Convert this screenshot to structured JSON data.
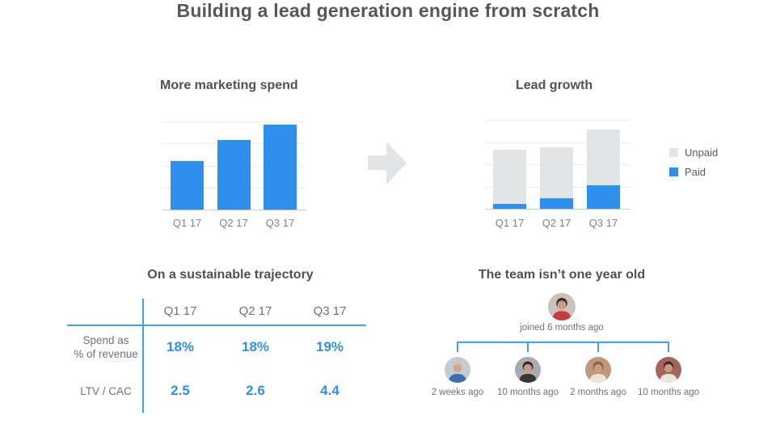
{
  "slide": {
    "title": "Building a lead generation engine from scratch"
  },
  "colors": {
    "accent_blue": "#2e90ec",
    "unpaid_gray": "#e3e4e6",
    "line_blue": "#42a0f2",
    "arrow_gray": "#e3e4e6",
    "gridline_gray": "#ececec",
    "baseline_gray": "#c7c9cb"
  },
  "chart_data": [
    {
      "type": "bar",
      "title": "More marketing spend",
      "categories": [
        "Q1 17",
        "Q2 17",
        "Q3 17"
      ],
      "values": [
        2.25,
        3.2,
        3.9
      ],
      "xlabel": "",
      "ylabel": "",
      "ylim": [
        0,
        4
      ],
      "grid": true,
      "legend_position": "none"
    },
    {
      "type": "bar",
      "stacked": true,
      "title": "Lead growth",
      "categories": [
        "Q1 17",
        "Q2 17",
        "Q3 17"
      ],
      "series": [
        {
          "name": "Paid",
          "color": "#2e90ec",
          "values": [
            0.25,
            0.5,
            1.1
          ]
        },
        {
          "name": "Unpaid",
          "color": "#e3e4e6",
          "values": [
            2.45,
            2.3,
            2.5
          ]
        }
      ],
      "xlabel": "",
      "ylabel": "",
      "ylim": [
        0,
        4
      ],
      "grid": true,
      "legend_position": "right"
    },
    {
      "type": "table",
      "title": "On a sustainable trajectory",
      "columns": [
        "Q1 17",
        "Q2 17",
        "Q3 17"
      ],
      "rows": [
        {
          "label": [
            "Spend as",
            "% of revenue"
          ],
          "values": [
            "18%",
            "18%",
            "19%"
          ]
        },
        {
          "label": [
            "LTV / CAC",
            ""
          ],
          "values": [
            "2.5",
            "2.6",
            "4.4"
          ]
        }
      ]
    }
  ],
  "team": {
    "title": "The team isn’t one year old",
    "manager_caption": "joined 6 months ago",
    "members": [
      {
        "caption": "2 weeks ago"
      },
      {
        "caption": "10 months ago"
      },
      {
        "caption": "2 months ago"
      },
      {
        "caption": "10 months ago"
      }
    ]
  }
}
